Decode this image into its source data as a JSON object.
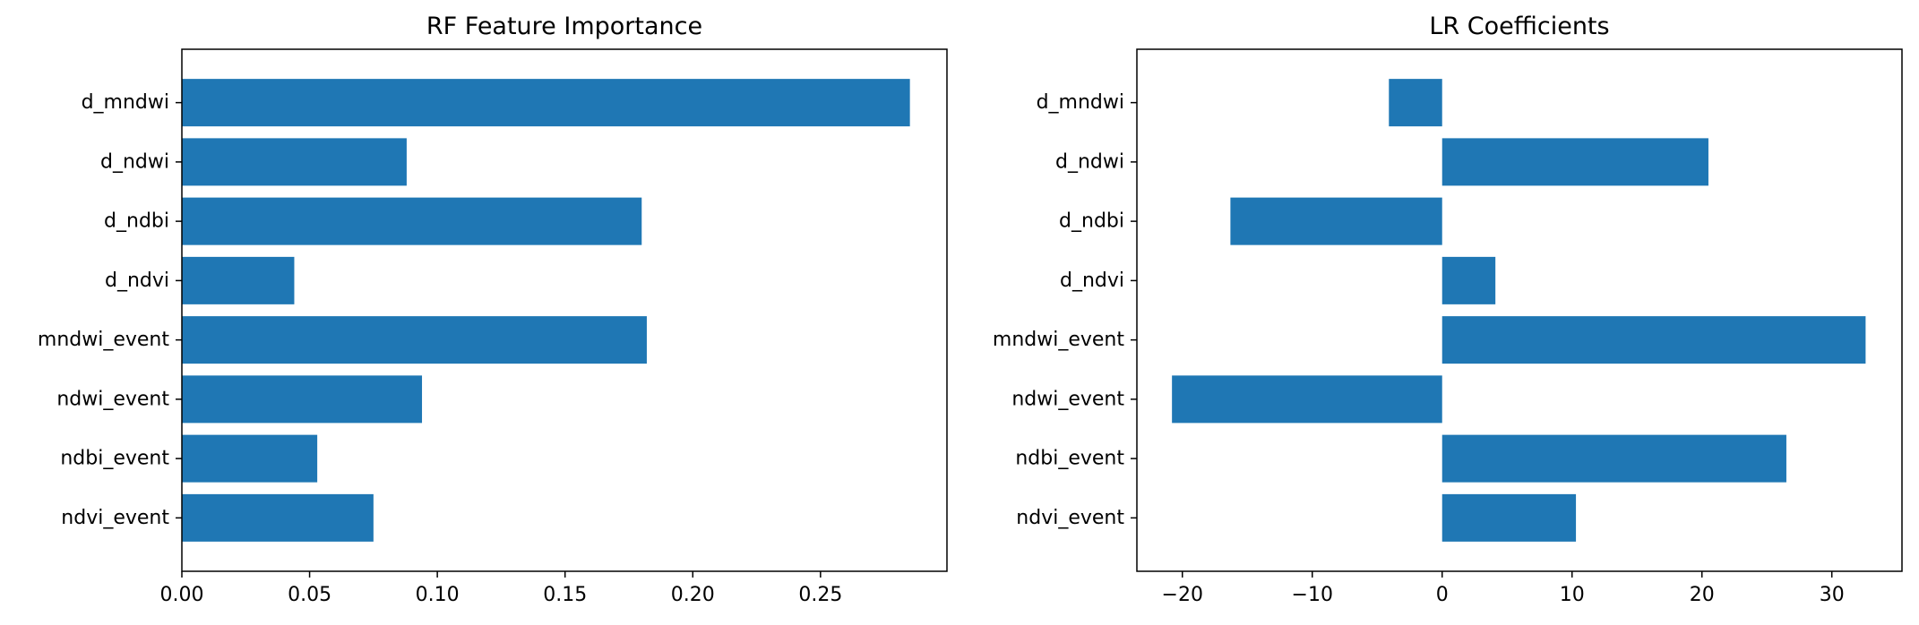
{
  "chart_data": [
    {
      "type": "bar",
      "orientation": "horizontal",
      "title": "RF Feature Importance",
      "xlabel": "",
      "ylabel": "",
      "categories": [
        "d_mndwi",
        "d_ndwi",
        "d_ndbi",
        "d_ndvi",
        "mndwi_event",
        "ndwi_event",
        "ndbi_event",
        "ndvi_event"
      ],
      "values": [
        0.285,
        0.088,
        0.18,
        0.044,
        0.182,
        0.094,
        0.053,
        0.075
      ],
      "xlim": [
        0,
        0.2995
      ],
      "xticks": [
        0.0,
        0.05,
        0.1,
        0.15,
        0.2,
        0.25
      ],
      "xtick_labels": [
        "0.00",
        "0.05",
        "0.10",
        "0.15",
        "0.20",
        "0.25"
      ],
      "color": "#1f77b4",
      "grid": false,
      "legend": "none"
    },
    {
      "type": "bar",
      "orientation": "horizontal",
      "title": "LR Coefficients",
      "xlabel": "",
      "ylabel": "",
      "categories": [
        "d_mndwi",
        "d_ndwi",
        "d_ndbi",
        "d_ndvi",
        "mndwi_event",
        "ndwi_event",
        "ndbi_event",
        "ndvi_event"
      ],
      "values": [
        -4.1,
        20.5,
        -16.3,
        4.1,
        32.6,
        -20.8,
        26.5,
        10.3
      ],
      "xlim": [
        -23.5,
        35.4
      ],
      "xticks": [
        -20,
        -10,
        0,
        10,
        20,
        30
      ],
      "xtick_labels": [
        "−20",
        "−10",
        "0",
        "10",
        "20",
        "30"
      ],
      "color": "#1f77b4",
      "grid": false,
      "legend": "none"
    }
  ]
}
